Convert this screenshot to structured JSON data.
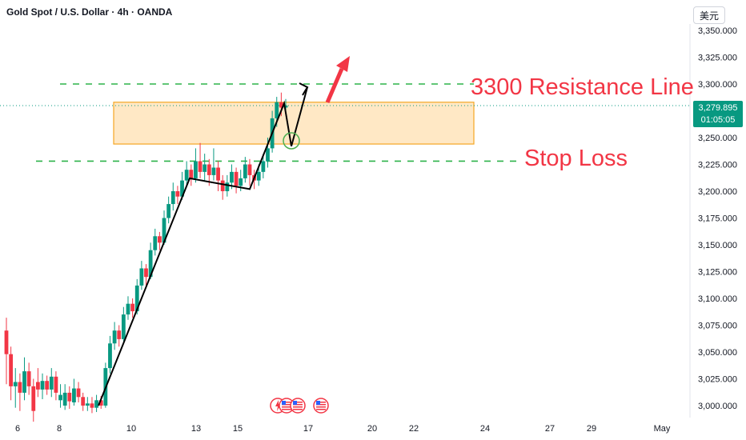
{
  "header": {
    "title": "Gold Spot / U.S. Dollar · 4h · OANDA",
    "currency_button": "美元"
  },
  "price_label": {
    "price": "3,279.895",
    "countdown": "01:05:05"
  },
  "annotations": {
    "resistance": "3300 Resistance Line",
    "stop_loss": "Stop Loss"
  },
  "colors": {
    "up": "#089981",
    "down": "#f23645",
    "dash": "#2db34a",
    "zone_fill": "#ffe0b2",
    "zone_border": "#f5a623",
    "price_line": "#089981",
    "path": "#000000",
    "arrow": "#f23645"
  },
  "icons": [
    "lightning-event-icon",
    "us-flag-event-icon",
    "us-flag-event-icon",
    "us-flag-event-icon"
  ],
  "chart_data": {
    "type": "candlestick",
    "ylim": [
      2990,
      3365
    ],
    "y_ticks": [
      "3,350.000",
      "3,325.000",
      "3,300.000",
      "3,275.000",
      "3,250.000",
      "3,225.000",
      "3,200.000",
      "3,175.000",
      "3,150.000",
      "3,125.000",
      "3,100.000",
      "3,075.000",
      "3,050.000",
      "3,025.000",
      "3,000.000"
    ],
    "y_tick_values": [
      3350,
      3325,
      3300,
      3275,
      3250,
      3225,
      3200,
      3175,
      3150,
      3125,
      3100,
      3075,
      3050,
      3025,
      3000
    ],
    "x_ticks": [
      "6",
      "8",
      "10",
      "13",
      "15",
      "17",
      "20",
      "22",
      "24",
      "27",
      "29",
      "May"
    ],
    "resistance_level": 3300,
    "stop_loss_level": 3228,
    "current_price": 3279.895,
    "zone": [
      3244,
      3283
    ],
    "candles": [
      [
        3070,
        3048,
        3082,
        3020
      ],
      [
        3048,
        3018,
        3055,
        3005
      ],
      [
        3018,
        3022,
        3035,
        2998
      ],
      [
        3022,
        3012,
        3030,
        2995
      ],
      [
        3012,
        3032,
        3045,
        3005
      ],
      [
        3032,
        3018,
        3040,
        3010
      ],
      [
        3018,
        2995,
        3025,
        2985
      ],
      [
        3022,
        3015,
        3035,
        3008
      ],
      [
        3015,
        3023,
        3030,
        3006
      ],
      [
        3023,
        3015,
        3028,
        3010
      ],
      [
        3015,
        3027,
        3035,
        3008
      ],
      [
        3027,
        3012,
        3032,
        3005
      ],
      [
        3005,
        3010,
        3020,
        2998
      ],
      [
        3000,
        3012,
        3020,
        2996
      ],
      [
        3012,
        3004,
        3018,
        2997
      ],
      [
        3003,
        3016,
        3025,
        3000
      ],
      [
        3016,
        3008,
        3022,
        3003
      ],
      [
        3008,
        3000,
        3012,
        2995
      ],
      [
        3000,
        3002,
        3008,
        2995
      ],
      [
        3002,
        2998,
        3008,
        2993
      ],
      [
        2998,
        3005,
        3010,
        2994
      ],
      [
        3005,
        3000,
        3009,
        2997
      ],
      [
        3000,
        3035,
        3040,
        2998
      ],
      [
        3035,
        3058,
        3065,
        3030
      ],
      [
        3058,
        3070,
        3078,
        3052
      ],
      [
        3070,
        3062,
        3075,
        3055
      ],
      [
        3062,
        3085,
        3092,
        3060
      ],
      [
        3085,
        3095,
        3102,
        3080
      ],
      [
        3095,
        3088,
        3100,
        3082
      ],
      [
        3088,
        3112,
        3118,
        3085
      ],
      [
        3112,
        3128,
        3135,
        3108
      ],
      [
        3128,
        3120,
        3132,
        3110
      ],
      [
        3120,
        3145,
        3152,
        3118
      ],
      [
        3145,
        3158,
        3165,
        3140
      ],
      [
        3158,
        3152,
        3162,
        3145
      ],
      [
        3152,
        3175,
        3182,
        3150
      ],
      [
        3175,
        3188,
        3195,
        3170
      ],
      [
        3188,
        3200,
        3208,
        3182
      ],
      [
        3200,
        3195,
        3205,
        3188
      ],
      [
        3195,
        3210,
        3218,
        3192
      ],
      [
        3210,
        3220,
        3228,
        3205
      ],
      [
        3220,
        3212,
        3225,
        3205
      ],
      [
        3212,
        3228,
        3240,
        3208
      ],
      [
        3228,
        3218,
        3245,
        3212
      ],
      [
        3218,
        3225,
        3235,
        3210
      ],
      [
        3225,
        3215,
        3230,
        3205
      ],
      [
        3215,
        3222,
        3240,
        3210
      ],
      [
        3222,
        3210,
        3228,
        3200
      ],
      [
        3210,
        3200,
        3215,
        3192
      ],
      [
        3200,
        3208,
        3215,
        3195
      ],
      [
        3208,
        3218,
        3225,
        3202
      ],
      [
        3218,
        3205,
        3222,
        3198
      ],
      [
        3205,
        3212,
        3220,
        3200
      ],
      [
        3212,
        3225,
        3232,
        3208
      ],
      [
        3225,
        3215,
        3230,
        3205
      ],
      [
        3215,
        3210,
        3220,
        3202
      ],
      [
        3210,
        3218,
        3225,
        3205
      ],
      [
        3218,
        3228,
        3235,
        3212
      ],
      [
        3228,
        3240,
        3250,
        3222
      ],
      [
        3240,
        3268,
        3275,
        3236
      ],
      [
        3268,
        3283,
        3288,
        3260
      ],
      [
        3283,
        3278,
        3292,
        3270
      ],
      [
        3278,
        3280,
        3286,
        3272
      ]
    ],
    "path": [
      [
        123,
        3000
      ],
      [
        237,
        3212
      ],
      [
        312,
        3202
      ],
      [
        355,
        3282
      ],
      [
        364,
        3242
      ],
      [
        384,
        3297
      ]
    ]
  }
}
